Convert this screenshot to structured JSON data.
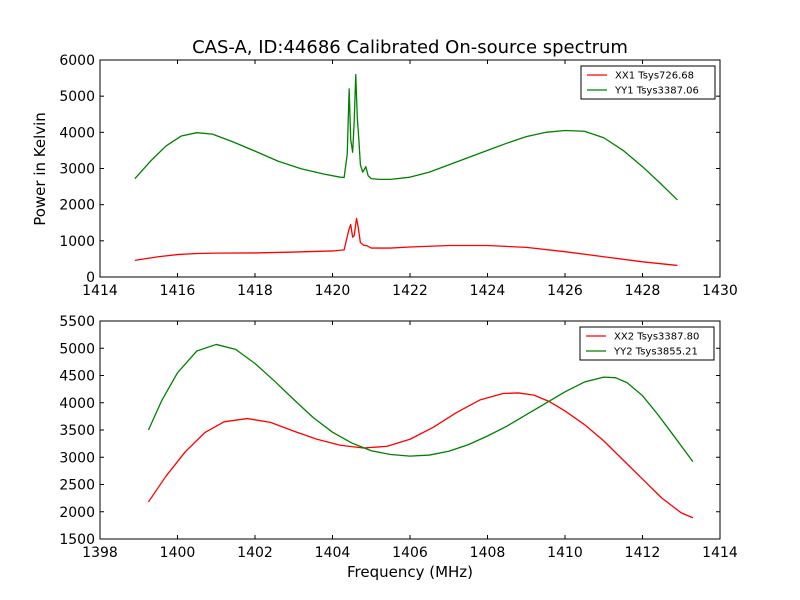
{
  "chart_data": [
    {
      "type": "line",
      "title": "CAS-A, ID:44686 Calibrated On-source spectrum",
      "xlabel": "",
      "ylabel": "Power in Kelvin",
      "xlim": [
        1414,
        1430
      ],
      "ylim": [
        0,
        6000
      ],
      "xticks": [
        1414,
        1416,
        1418,
        1420,
        1422,
        1424,
        1426,
        1428,
        1430
      ],
      "yticks": [
        0,
        1000,
        2000,
        3000,
        4000,
        5000,
        6000
      ],
      "grid": false,
      "legend_position": "top-right",
      "series": [
        {
          "name": "XX1 Tsys726.68",
          "color": "#ff0000",
          "x": [
            1414.9,
            1415.5,
            1416,
            1416.5,
            1417,
            1418,
            1419,
            1420,
            1420.3,
            1420.42,
            1420.47,
            1420.52,
            1420.56,
            1420.62,
            1420.66,
            1420.72,
            1420.8,
            1420.9,
            1421,
            1421.5,
            1422,
            1423,
            1424,
            1425,
            1426,
            1427,
            1428,
            1428.9
          ],
          "values": [
            460,
            560,
            620,
            650,
            660,
            665,
            690,
            720,
            750,
            1300,
            1450,
            1100,
            1150,
            1620,
            1400,
            950,
            880,
            860,
            800,
            800,
            830,
            870,
            870,
            820,
            700,
            560,
            420,
            320
          ]
        },
        {
          "name": "YY1 Tsys3387.06",
          "color": "#008000",
          "x": [
            1414.9,
            1415.3,
            1415.7,
            1416.1,
            1416.5,
            1416.9,
            1417.4,
            1418,
            1418.6,
            1419.2,
            1419.8,
            1420.2,
            1420.3,
            1420.38,
            1420.43,
            1420.47,
            1420.52,
            1420.56,
            1420.6,
            1420.64,
            1420.68,
            1420.72,
            1420.78,
            1420.86,
            1420.92,
            1421,
            1421.2,
            1421.5,
            1422,
            1422.5,
            1423,
            1423.5,
            1424,
            1424.5,
            1425,
            1425.5,
            1426,
            1426.5,
            1427,
            1427.5,
            1428,
            1428.5,
            1428.9
          ],
          "values": [
            2720,
            3200,
            3620,
            3900,
            3990,
            3950,
            3750,
            3480,
            3200,
            2990,
            2840,
            2760,
            2750,
            3400,
            5200,
            3800,
            3450,
            4300,
            5600,
            4400,
            3800,
            3100,
            2900,
            3050,
            2800,
            2720,
            2700,
            2700,
            2760,
            2900,
            3100,
            3300,
            3500,
            3700,
            3880,
            4000,
            4050,
            4030,
            3850,
            3500,
            3050,
            2550,
            2130
          ]
        }
      ]
    },
    {
      "type": "line",
      "title": "",
      "xlabel": "Frequency (MHz)",
      "ylabel": "",
      "xlim": [
        1398,
        1414
      ],
      "ylim": [
        1500,
        5500
      ],
      "xticks": [
        1398,
        1400,
        1402,
        1404,
        1406,
        1408,
        1410,
        1412,
        1414
      ],
      "yticks": [
        1500,
        2000,
        2500,
        3000,
        3500,
        4000,
        4500,
        5000,
        5500
      ],
      "grid": false,
      "legend_position": "top-right",
      "series": [
        {
          "name": "XX2 Tsys3387.80",
          "color": "#ff0000",
          "x": [
            1399.25,
            1399.7,
            1400.2,
            1400.7,
            1401.2,
            1401.8,
            1402.4,
            1403,
            1403.6,
            1404.2,
            1404.8,
            1405.4,
            1406,
            1406.6,
            1407.2,
            1407.8,
            1408.4,
            1408.8,
            1409.2,
            1409.6,
            1410,
            1410.5,
            1411,
            1411.5,
            1412,
            1412.5,
            1413,
            1413.3
          ],
          "values": [
            2180,
            2650,
            3100,
            3450,
            3650,
            3710,
            3640,
            3480,
            3330,
            3220,
            3170,
            3200,
            3330,
            3550,
            3820,
            4050,
            4170,
            4180,
            4140,
            4020,
            3850,
            3600,
            3300,
            2950,
            2600,
            2250,
            1980,
            1890
          ]
        },
        {
          "name": "YY2 Tsys3855.21",
          "color": "#008000",
          "x": [
            1399.25,
            1399.6,
            1400,
            1400.5,
            1401,
            1401.5,
            1402,
            1402.5,
            1403,
            1403.5,
            1404,
            1404.5,
            1405,
            1405.5,
            1406,
            1406.5,
            1407,
            1407.5,
            1408,
            1408.5,
            1409,
            1409.5,
            1410,
            1410.5,
            1411,
            1411.3,
            1411.6,
            1412,
            1412.4,
            1412.8,
            1413.3
          ],
          "values": [
            3500,
            4050,
            4550,
            4950,
            5070,
            4980,
            4720,
            4400,
            4060,
            3730,
            3460,
            3260,
            3120,
            3050,
            3020,
            3040,
            3110,
            3230,
            3390,
            3570,
            3780,
            3990,
            4200,
            4380,
            4470,
            4460,
            4370,
            4130,
            3780,
            3400,
            2920
          ]
        }
      ]
    }
  ]
}
